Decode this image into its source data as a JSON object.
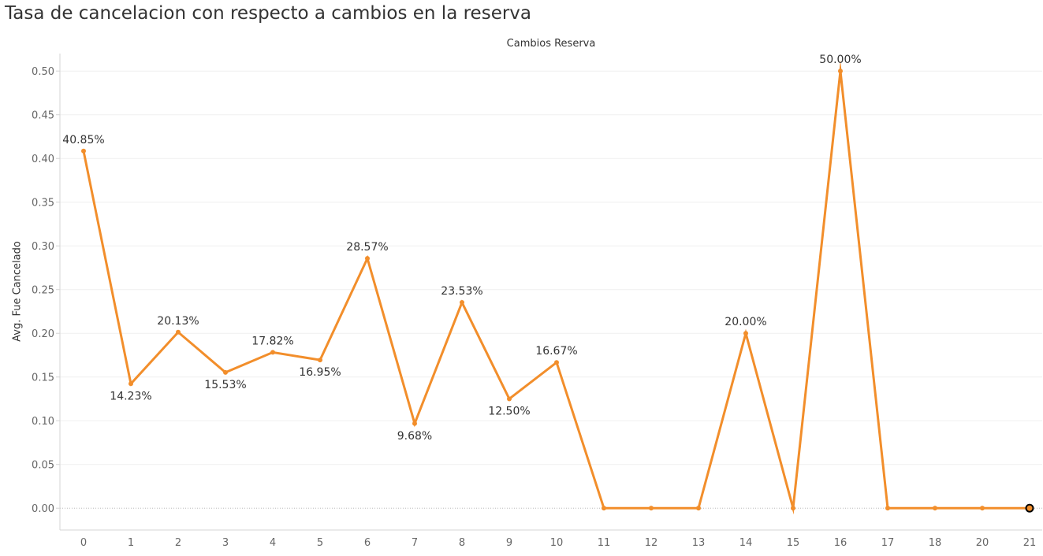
{
  "chart_data": {
    "type": "line",
    "title": "Tasa de cancelacion con respecto a cambios en la reserva",
    "x_header": "Cambios Reserva",
    "ylabel": "Avg. Fue Cancelado",
    "ylim": [
      -0.025,
      0.52
    ],
    "y_ticks": [
      "0.00",
      "0.05",
      "0.10",
      "0.15",
      "0.20",
      "0.25",
      "0.30",
      "0.35",
      "0.40",
      "0.45",
      "0.50"
    ],
    "x_ticks": [
      "0",
      "1",
      "2",
      "3",
      "4",
      "5",
      "6",
      "7",
      "8",
      "9",
      "10",
      "11",
      "12",
      "13",
      "14",
      "15",
      "16",
      "17",
      "18",
      "20",
      "21"
    ],
    "grid": true,
    "series": [
      {
        "color": "#f28e2b",
        "points": [
          {
            "x": "0",
            "y": 0.4085,
            "label": "40.85%",
            "label_pos": "above"
          },
          {
            "x": "1",
            "y": 0.1423,
            "label": "14.23%",
            "label_pos": "below"
          },
          {
            "x": "2",
            "y": 0.2013,
            "label": "20.13%",
            "label_pos": "above"
          },
          {
            "x": "3",
            "y": 0.1553,
            "label": "15.53%",
            "label_pos": "below"
          },
          {
            "x": "4",
            "y": 0.1782,
            "label": "17.82%",
            "label_pos": "above"
          },
          {
            "x": "5",
            "y": 0.1695,
            "label": "16.95%",
            "label_pos": "below"
          },
          {
            "x": "6",
            "y": 0.2857,
            "label": "28.57%",
            "label_pos": "above"
          },
          {
            "x": "7",
            "y": 0.0968,
            "label": "9.68%",
            "label_pos": "below"
          },
          {
            "x": "8",
            "y": 0.2353,
            "label": "23.53%",
            "label_pos": "above"
          },
          {
            "x": "9",
            "y": 0.125,
            "label": "12.50%",
            "label_pos": "below"
          },
          {
            "x": "10",
            "y": 0.1667,
            "label": "16.67%",
            "label_pos": "above"
          },
          {
            "x": "11",
            "y": 0.0,
            "label": ""
          },
          {
            "x": "12",
            "y": 0.0,
            "label": ""
          },
          {
            "x": "13",
            "y": 0.0,
            "label": ""
          },
          {
            "x": "14",
            "y": 0.2,
            "label": "20.00%",
            "label_pos": "above"
          },
          {
            "x": "15",
            "y": 0.0,
            "label": ""
          },
          {
            "x": "16",
            "y": 0.5,
            "label": "50.00%",
            "label_pos": "above"
          },
          {
            "x": "17",
            "y": 0.0,
            "label": ""
          },
          {
            "x": "18",
            "y": 0.0,
            "label": ""
          },
          {
            "x": "20",
            "y": 0.0,
            "label": ""
          },
          {
            "x": "21",
            "y": 0.0,
            "label": "",
            "highlighted": true
          }
        ]
      }
    ]
  }
}
